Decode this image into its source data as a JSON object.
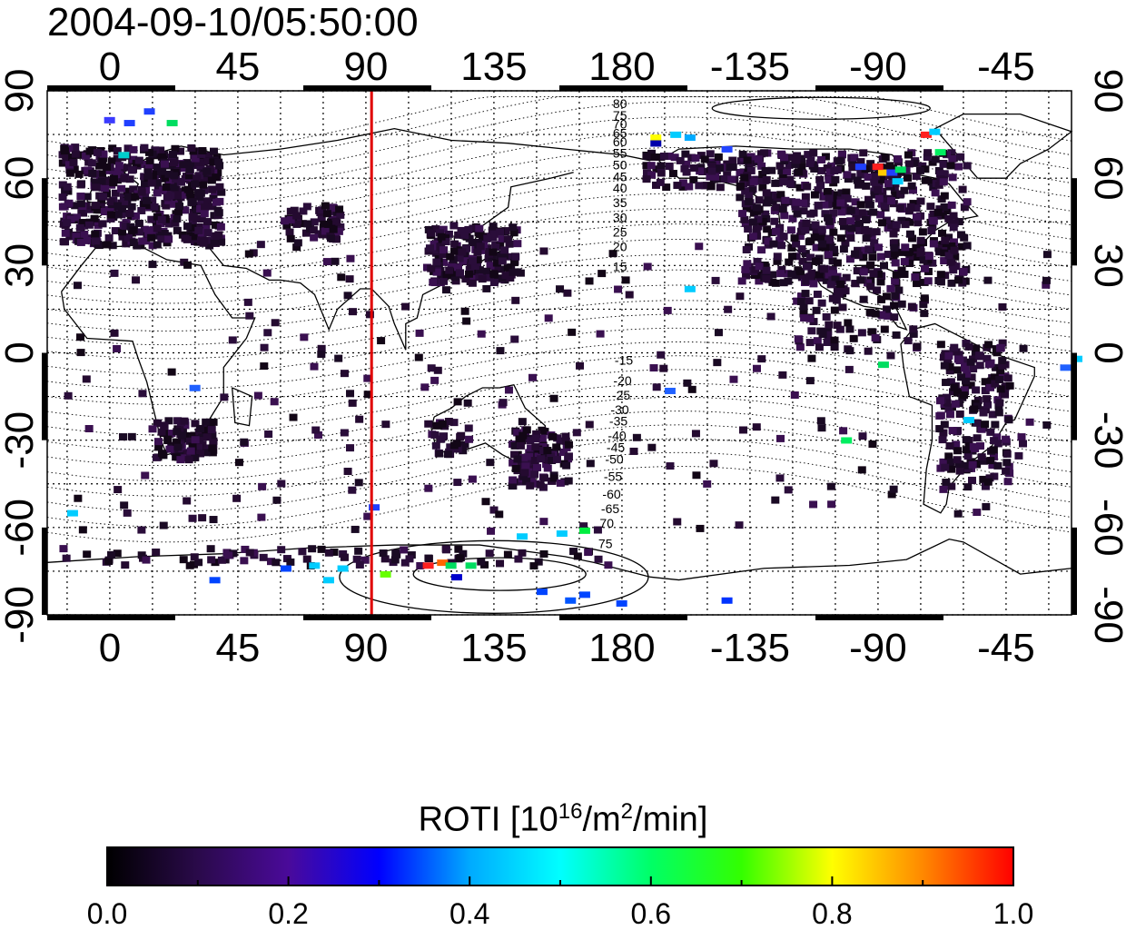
{
  "title": "2004-09-10/05:50:00",
  "map": {
    "x_ticks_top": [
      "0",
      "45",
      "90",
      "135",
      "180",
      "-135",
      "-90",
      "-45"
    ],
    "x_ticks_bottom": [
      "0",
      "45",
      "90",
      "135",
      "180",
      "-135",
      "-90",
      "-45"
    ],
    "y_ticks_left": [
      "90",
      "60",
      "30",
      "0",
      "-30",
      "-60",
      "-90"
    ],
    "y_ticks_right": [
      "90",
      "60",
      "30",
      "0",
      "-30",
      "-60",
      "-90"
    ],
    "marker_longitude": 92,
    "marker_color": "#e00000",
    "contour_labels_north": [
      "80",
      "75",
      "70",
      "65",
      "60",
      "55",
      "50",
      "45",
      "40",
      "35",
      "30",
      "25",
      "20",
      "15"
    ],
    "contour_labels_south": [
      "-15",
      "-20",
      "-25",
      "-30",
      "-35",
      "-40",
      "-45",
      "-50",
      "-55",
      "-60",
      "-65",
      "70",
      "75"
    ]
  },
  "colorbar": {
    "title_main": "ROTI  [10",
    "title_sup1": "16",
    "title_mid": "/m",
    "title_sup2": "2",
    "title_end": "/min]",
    "ticks": [
      "0.0",
      "0.2",
      "0.4",
      "0.6",
      "0.8",
      "1.0"
    ],
    "min": 0.0,
    "max": 1.0,
    "gradient_stops": [
      "#000000",
      "#2a0a4a",
      "#4a0a9a",
      "#0000ff",
      "#00aaff",
      "#00ffff",
      "#00ff66",
      "#33ff00",
      "#ffff00",
      "#ff8800",
      "#ff0000"
    ]
  }
}
